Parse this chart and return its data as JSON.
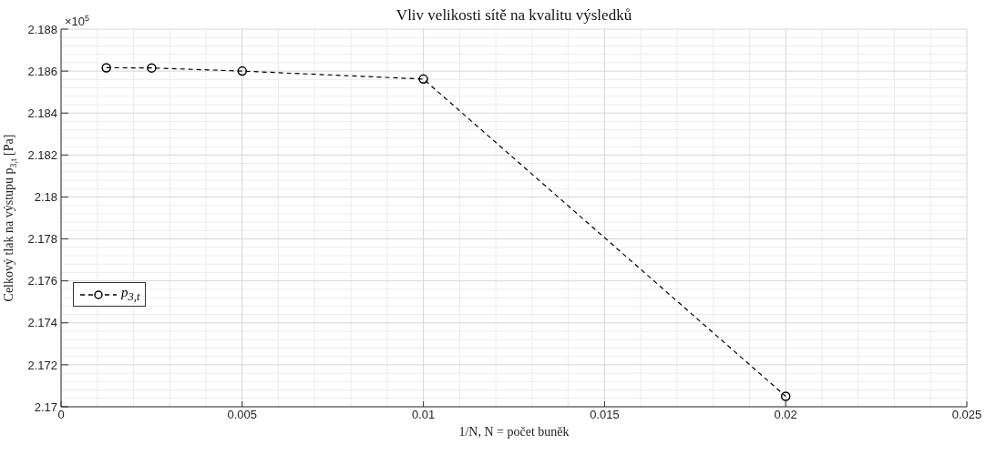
{
  "chart_data": {
    "type": "line",
    "title": "Vliv velikosti sítě na kvalitu výsledků",
    "xlabel": "1/N, N = počet buněk",
    "ylabel": "Celkový tlak na výstupu p$_{3,t}$ [Pa]",
    "annotations": [
      "×10$^{5}$"
    ],
    "x": [
      0.00125,
      0.0025,
      0.005,
      0.01,
      0.02
    ],
    "series": [
      {
        "name": "p$_{3,t}$",
        "color": "#000000",
        "values": [
          2.18616,
          2.18615,
          2.186,
          2.18562,
          2.1705
        ]
      }
    ],
    "xlim": [
      0,
      0.025
    ],
    "xticks": [
      0,
      0.005,
      0.01,
      0.015,
      0.02,
      0.025
    ],
    "ylim": [
      2.17,
      2.188
    ],
    "yticks": [
      2.17,
      2.172,
      2.174,
      2.176,
      2.178,
      2.18,
      2.182,
      2.184,
      2.186,
      2.188
    ],
    "grid": true,
    "legend": "left",
    "marker": "circle",
    "line_style": "dashed"
  }
}
